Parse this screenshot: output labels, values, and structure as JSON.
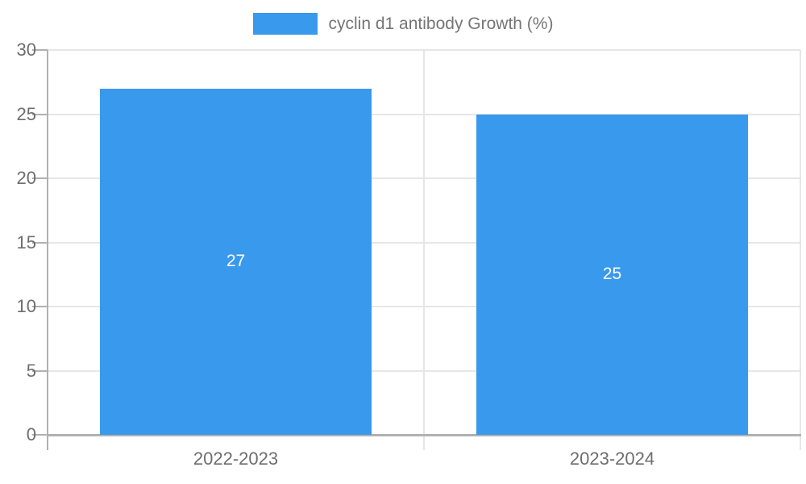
{
  "legend": {
    "label": "cyclin d1 antibody Growth (%)",
    "swatch_color": "#3999EC"
  },
  "chart_data": {
    "type": "bar",
    "title": "",
    "categories": [
      "2022-2023",
      "2023-2024"
    ],
    "series": [
      {
        "name": "cyclin d1 antibody Growth (%)",
        "values": [
          27,
          25
        ]
      }
    ],
    "bar_labels": [
      "27",
      "25"
    ],
    "ylabel": "",
    "xlabel": "",
    "ylim": [
      0,
      30
    ],
    "yticks": [
      0,
      5,
      10,
      15,
      20,
      25,
      30
    ],
    "grid": true,
    "legend_position": "top-center",
    "bar_color": "#3999EC",
    "bar_label_color": "#ffffff",
    "axis_color": "#b1b1b1",
    "grid_color": "#e6e6e6",
    "tick_label_color": "#6e6e6e"
  }
}
